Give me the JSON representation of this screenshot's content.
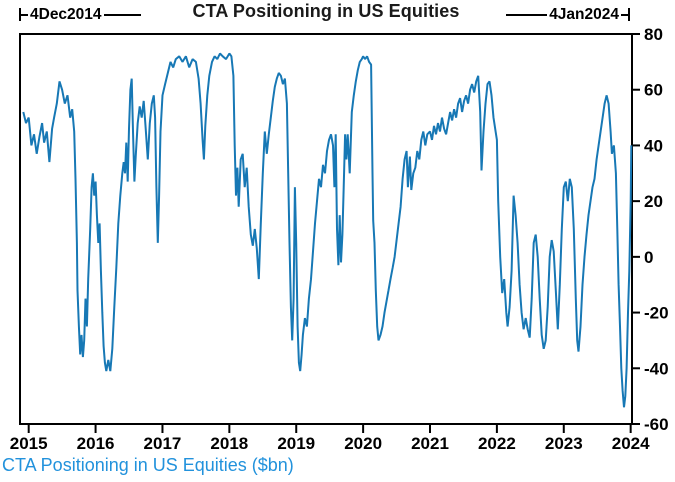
{
  "title": "CTA Positioning in US Equities",
  "annotations": {
    "start_label": "4Dec2014",
    "end_label": "4Jan2024"
  },
  "footer": "CTA Positioning in US Equities ($bn)",
  "colors": {
    "line": "#1778b5",
    "footer_text": "#2292dc",
    "axis": "#000000"
  },
  "chart_data": {
    "type": "line",
    "title": "CTA Positioning in US Equities",
    "series_label": "CTA Positioning in US Equities ($bn)",
    "ylabel": "$bn",
    "start_date": "4Dec2014",
    "end_date": "4Jan2024",
    "xlim": [
      2014.87,
      2024.02
    ],
    "ylim": [
      -60,
      80
    ],
    "x_ticks": [
      2015,
      2016,
      2017,
      2018,
      2019,
      2020,
      2021,
      2022,
      2023,
      2024
    ],
    "y_ticks": [
      80,
      60,
      40,
      20,
      0,
      -20,
      -40,
      -60
    ],
    "grid": false,
    "legend_position": "none",
    "points": [
      [
        2014.92,
        52
      ],
      [
        2014.96,
        48
      ],
      [
        2015.0,
        50
      ],
      [
        2015.04,
        40
      ],
      [
        2015.08,
        44
      ],
      [
        2015.12,
        37
      ],
      [
        2015.16,
        43
      ],
      [
        2015.2,
        48
      ],
      [
        2015.23,
        41
      ],
      [
        2015.27,
        45
      ],
      [
        2015.31,
        34
      ],
      [
        2015.35,
        46
      ],
      [
        2015.38,
        50
      ],
      [
        2015.42,
        55
      ],
      [
        2015.46,
        63
      ],
      [
        2015.5,
        60
      ],
      [
        2015.54,
        55
      ],
      [
        2015.58,
        58
      ],
      [
        2015.62,
        50
      ],
      [
        2015.65,
        53
      ],
      [
        2015.68,
        45
      ],
      [
        2015.7,
        28
      ],
      [
        2015.72,
        5
      ],
      [
        2015.73,
        -12
      ],
      [
        2015.75,
        -25
      ],
      [
        2015.77,
        -35
      ],
      [
        2015.79,
        -28
      ],
      [
        2015.81,
        -36
      ],
      [
        2015.83,
        -30
      ],
      [
        2015.85,
        -15
      ],
      [
        2015.87,
        -25
      ],
      [
        2015.89,
        -8
      ],
      [
        2015.92,
        10
      ],
      [
        2015.94,
        25
      ],
      [
        2015.96,
        30
      ],
      [
        2015.98,
        22
      ],
      [
        2016.0,
        27
      ],
      [
        2016.02,
        15
      ],
      [
        2016.04,
        5
      ],
      [
        2016.06,
        12
      ],
      [
        2016.08,
        -5
      ],
      [
        2016.1,
        -20
      ],
      [
        2016.12,
        -32
      ],
      [
        2016.14,
        -38
      ],
      [
        2016.16,
        -41
      ],
      [
        2016.19,
        -37
      ],
      [
        2016.22,
        -41
      ],
      [
        2016.25,
        -33
      ],
      [
        2016.28,
        -18
      ],
      [
        2016.31,
        -4
      ],
      [
        2016.34,
        12
      ],
      [
        2016.37,
        22
      ],
      [
        2016.4,
        30
      ],
      [
        2016.42,
        34
      ],
      [
        2016.44,
        30
      ],
      [
        2016.46,
        41
      ],
      [
        2016.48,
        27
      ],
      [
        2016.5,
        46
      ],
      [
        2016.52,
        60
      ],
      [
        2016.54,
        64
      ],
      [
        2016.56,
        45
      ],
      [
        2016.58,
        27
      ],
      [
        2016.6,
        36
      ],
      [
        2016.63,
        48
      ],
      [
        2016.66,
        54
      ],
      [
        2016.69,
        50
      ],
      [
        2016.72,
        56
      ],
      [
        2016.75,
        46
      ],
      [
        2016.78,
        35
      ],
      [
        2016.81,
        48
      ],
      [
        2016.84,
        55
      ],
      [
        2016.87,
        58
      ],
      [
        2016.89,
        50
      ],
      [
        2016.91,
        25
      ],
      [
        2016.93,
        5
      ],
      [
        2016.95,
        22
      ],
      [
        2016.97,
        45
      ],
      [
        2017.0,
        58
      ],
      [
        2017.04,
        62
      ],
      [
        2017.08,
        66
      ],
      [
        2017.12,
        70
      ],
      [
        2017.16,
        68
      ],
      [
        2017.2,
        71
      ],
      [
        2017.25,
        72
      ],
      [
        2017.3,
        70
      ],
      [
        2017.35,
        72
      ],
      [
        2017.4,
        68
      ],
      [
        2017.45,
        71
      ],
      [
        2017.5,
        70
      ],
      [
        2017.54,
        64
      ],
      [
        2017.57,
        55
      ],
      [
        2017.6,
        42
      ],
      [
        2017.62,
        35
      ],
      [
        2017.64,
        47
      ],
      [
        2017.67,
        58
      ],
      [
        2017.7,
        65
      ],
      [
        2017.74,
        70
      ],
      [
        2017.78,
        72
      ],
      [
        2017.82,
        71
      ],
      [
        2017.86,
        73
      ],
      [
        2017.9,
        72
      ],
      [
        2017.95,
        71
      ],
      [
        2018.0,
        73
      ],
      [
        2018.03,
        72
      ],
      [
        2018.06,
        65
      ],
      [
        2018.08,
        40
      ],
      [
        2018.1,
        22
      ],
      [
        2018.12,
        32
      ],
      [
        2018.14,
        18
      ],
      [
        2018.17,
        35
      ],
      [
        2018.2,
        37
      ],
      [
        2018.23,
        25
      ],
      [
        2018.26,
        32
      ],
      [
        2018.29,
        18
      ],
      [
        2018.32,
        8
      ],
      [
        2018.35,
        4
      ],
      [
        2018.38,
        10
      ],
      [
        2018.41,
        3
      ],
      [
        2018.44,
        -8
      ],
      [
        2018.47,
        12
      ],
      [
        2018.5,
        30
      ],
      [
        2018.53,
        45
      ],
      [
        2018.56,
        37
      ],
      [
        2018.59,
        44
      ],
      [
        2018.62,
        50
      ],
      [
        2018.65,
        56
      ],
      [
        2018.68,
        61
      ],
      [
        2018.71,
        64
      ],
      [
        2018.74,
        66
      ],
      [
        2018.77,
        65
      ],
      [
        2018.8,
        62
      ],
      [
        2018.83,
        64
      ],
      [
        2018.86,
        55
      ],
      [
        2018.88,
        30
      ],
      [
        2018.9,
        5
      ],
      [
        2018.92,
        -18
      ],
      [
        2018.94,
        -30
      ],
      [
        2018.96,
        -15
      ],
      [
        2018.98,
        25
      ],
      [
        2019.0,
        5
      ],
      [
        2019.02,
        -25
      ],
      [
        2019.04,
        -38
      ],
      [
        2019.06,
        -41
      ],
      [
        2019.08,
        -35
      ],
      [
        2019.1,
        -28
      ],
      [
        2019.13,
        -22
      ],
      [
        2019.16,
        -25
      ],
      [
        2019.19,
        -15
      ],
      [
        2019.22,
        -8
      ],
      [
        2019.25,
        2
      ],
      [
        2019.28,
        12
      ],
      [
        2019.31,
        20
      ],
      [
        2019.34,
        28
      ],
      [
        2019.37,
        25
      ],
      [
        2019.4,
        33
      ],
      [
        2019.43,
        30
      ],
      [
        2019.46,
        38
      ],
      [
        2019.49,
        42
      ],
      [
        2019.52,
        44
      ],
      [
        2019.55,
        40
      ],
      [
        2019.57,
        25
      ],
      [
        2019.59,
        44
      ],
      [
        2019.61,
        10
      ],
      [
        2019.63,
        -3
      ],
      [
        2019.65,
        15
      ],
      [
        2019.67,
        -2
      ],
      [
        2019.69,
        8
      ],
      [
        2019.71,
        25
      ],
      [
        2019.73,
        44
      ],
      [
        2019.75,
        35
      ],
      [
        2019.77,
        44
      ],
      [
        2019.8,
        30
      ],
      [
        2019.83,
        52
      ],
      [
        2019.86,
        58
      ],
      [
        2019.89,
        63
      ],
      [
        2019.92,
        67
      ],
      [
        2019.95,
        70
      ],
      [
        2019.98,
        71
      ],
      [
        2020.0,
        72
      ],
      [
        2020.03,
        71
      ],
      [
        2020.06,
        72
      ],
      [
        2020.09,
        70
      ],
      [
        2020.12,
        69
      ],
      [
        2020.14,
        30
      ],
      [
        2020.15,
        13
      ],
      [
        2020.17,
        5
      ],
      [
        2020.19,
        -12
      ],
      [
        2020.21,
        -25
      ],
      [
        2020.23,
        -30
      ],
      [
        2020.26,
        -28
      ],
      [
        2020.29,
        -25
      ],
      [
        2020.32,
        -20
      ],
      [
        2020.35,
        -16
      ],
      [
        2020.38,
        -12
      ],
      [
        2020.41,
        -8
      ],
      [
        2020.44,
        -4
      ],
      [
        2020.47,
        0
      ],
      [
        2020.5,
        6
      ],
      [
        2020.53,
        12
      ],
      [
        2020.56,
        18
      ],
      [
        2020.59,
        28
      ],
      [
        2020.62,
        35
      ],
      [
        2020.65,
        38
      ],
      [
        2020.67,
        25
      ],
      [
        2020.7,
        36
      ],
      [
        2020.72,
        24
      ],
      [
        2020.75,
        30
      ],
      [
        2020.78,
        32
      ],
      [
        2020.81,
        38
      ],
      [
        2020.84,
        35
      ],
      [
        2020.87,
        42
      ],
      [
        2020.9,
        45
      ],
      [
        2020.93,
        40
      ],
      [
        2020.96,
        44
      ],
      [
        2021.0,
        45
      ],
      [
        2021.03,
        42
      ],
      [
        2021.06,
        47
      ],
      [
        2021.09,
        44
      ],
      [
        2021.12,
        48
      ],
      [
        2021.15,
        45
      ],
      [
        2021.18,
        50
      ],
      [
        2021.21,
        46
      ],
      [
        2021.24,
        44
      ],
      [
        2021.27,
        48
      ],
      [
        2021.3,
        52
      ],
      [
        2021.33,
        49
      ],
      [
        2021.36,
        53
      ],
      [
        2021.39,
        50
      ],
      [
        2021.42,
        55
      ],
      [
        2021.45,
        57
      ],
      [
        2021.48,
        52
      ],
      [
        2021.51,
        56
      ],
      [
        2021.54,
        58
      ],
      [
        2021.57,
        55
      ],
      [
        2021.6,
        60
      ],
      [
        2021.63,
        62
      ],
      [
        2021.66,
        59
      ],
      [
        2021.69,
        63
      ],
      [
        2021.72,
        65
      ],
      [
        2021.75,
        52
      ],
      [
        2021.77,
        31
      ],
      [
        2021.8,
        45
      ],
      [
        2021.83,
        55
      ],
      [
        2021.86,
        62
      ],
      [
        2021.89,
        63
      ],
      [
        2021.92,
        58
      ],
      [
        2021.95,
        50
      ],
      [
        2021.98,
        45
      ],
      [
        2022.0,
        42
      ],
      [
        2022.02,
        20
      ],
      [
        2022.05,
        0
      ],
      [
        2022.08,
        -13
      ],
      [
        2022.11,
        -8
      ],
      [
        2022.14,
        -20
      ],
      [
        2022.16,
        -25
      ],
      [
        2022.19,
        -18
      ],
      [
        2022.22,
        -5
      ],
      [
        2022.25,
        22
      ],
      [
        2022.28,
        15
      ],
      [
        2022.31,
        5
      ],
      [
        2022.34,
        -10
      ],
      [
        2022.37,
        -20
      ],
      [
        2022.4,
        -26
      ],
      [
        2022.43,
        -22
      ],
      [
        2022.46,
        -26
      ],
      [
        2022.49,
        -29
      ],
      [
        2022.52,
        -15
      ],
      [
        2022.55,
        5
      ],
      [
        2022.58,
        8
      ],
      [
        2022.61,
        0
      ],
      [
        2022.64,
        -15
      ],
      [
        2022.67,
        -28
      ],
      [
        2022.7,
        -33
      ],
      [
        2022.73,
        -30
      ],
      [
        2022.76,
        -18
      ],
      [
        2022.79,
        0
      ],
      [
        2022.82,
        6
      ],
      [
        2022.85,
        2
      ],
      [
        2022.88,
        -12
      ],
      [
        2022.91,
        -26
      ],
      [
        2022.94,
        -10
      ],
      [
        2022.97,
        10
      ],
      [
        2023.0,
        25
      ],
      [
        2023.03,
        27
      ],
      [
        2023.06,
        20
      ],
      [
        2023.09,
        28
      ],
      [
        2023.12,
        25
      ],
      [
        2023.15,
        10
      ],
      [
        2023.18,
        -15
      ],
      [
        2023.2,
        -30
      ],
      [
        2023.22,
        -34
      ],
      [
        2023.25,
        -25
      ],
      [
        2023.28,
        -10
      ],
      [
        2023.31,
        0
      ],
      [
        2023.34,
        8
      ],
      [
        2023.37,
        15
      ],
      [
        2023.4,
        20
      ],
      [
        2023.43,
        25
      ],
      [
        2023.46,
        28
      ],
      [
        2023.49,
        35
      ],
      [
        2023.52,
        40
      ],
      [
        2023.55,
        45
      ],
      [
        2023.58,
        50
      ],
      [
        2023.61,
        55
      ],
      [
        2023.64,
        58
      ],
      [
        2023.67,
        55
      ],
      [
        2023.7,
        45
      ],
      [
        2023.72,
        37
      ],
      [
        2023.75,
        40
      ],
      [
        2023.78,
        30
      ],
      [
        2023.8,
        10
      ],
      [
        2023.82,
        -10
      ],
      [
        2023.84,
        -25
      ],
      [
        2023.86,
        -40
      ],
      [
        2023.88,
        -48
      ],
      [
        2023.9,
        -54
      ],
      [
        2023.92,
        -50
      ],
      [
        2023.94,
        -40
      ],
      [
        2023.96,
        -20
      ],
      [
        2023.98,
        -5
      ],
      [
        2024.0,
        20
      ],
      [
        2024.01,
        40
      ]
    ]
  }
}
